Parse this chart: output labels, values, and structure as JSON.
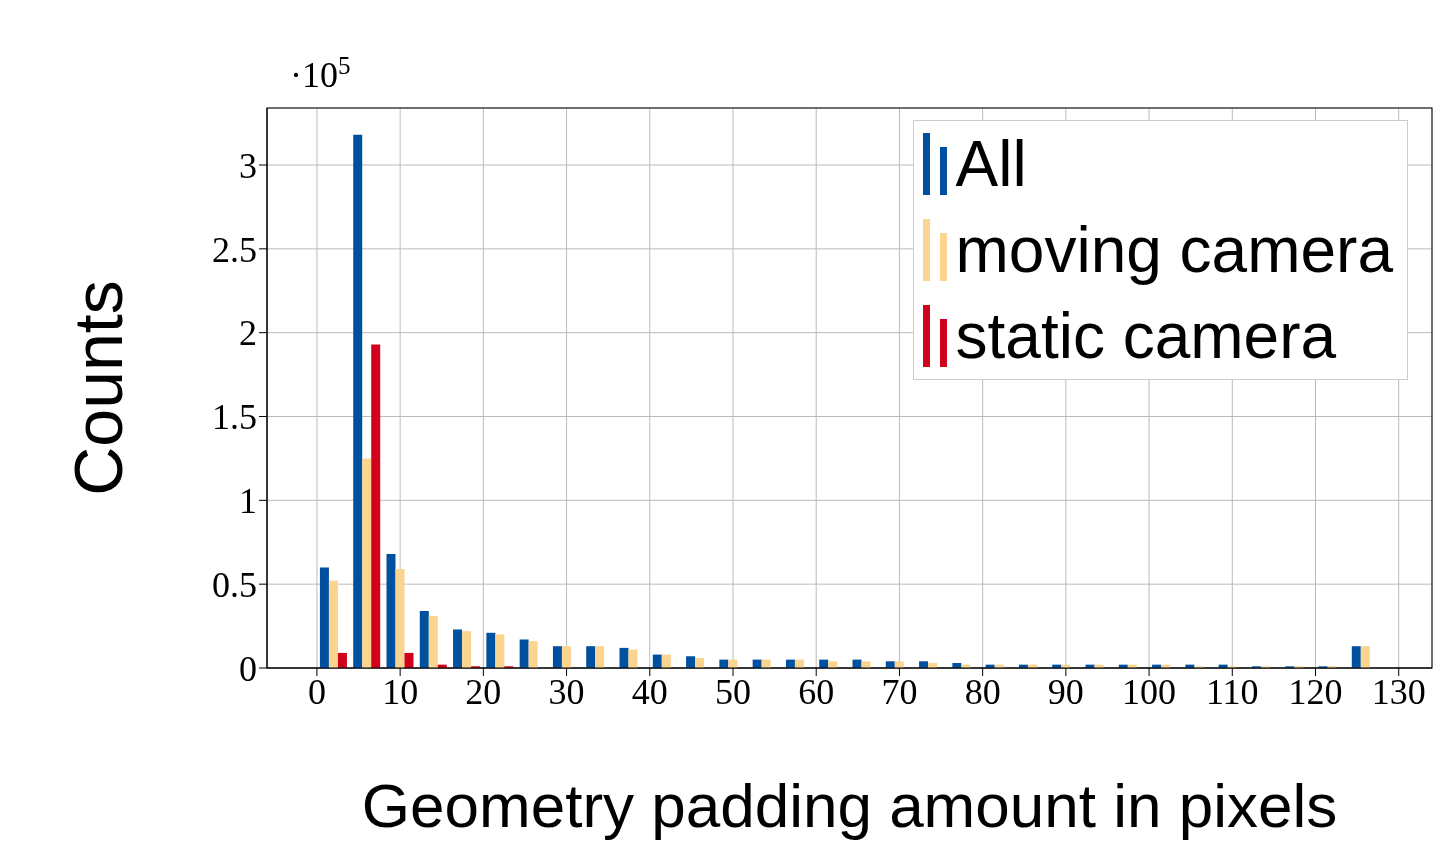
{
  "chart_data": {
    "type": "bar",
    "xlabel": "Geometry padding amount in pixels",
    "ylabel": "Counts",
    "annotations": [
      "·10$^{5}$"
    ],
    "x": [
      2,
      6,
      10,
      14,
      18,
      22,
      26,
      30,
      34,
      38,
      42,
      46,
      50,
      54,
      58,
      62,
      66,
      70,
      74,
      78,
      82,
      86,
      90,
      94,
      98,
      102,
      106,
      110,
      114,
      118,
      122,
      126
    ],
    "series": [
      {
        "name": "All",
        "color": "#0050a0",
        "values": [
          0.6,
          3.18,
          0.68,
          0.34,
          0.23,
          0.21,
          0.17,
          0.13,
          0.13,
          0.12,
          0.08,
          0.07,
          0.05,
          0.05,
          0.05,
          0.05,
          0.05,
          0.04,
          0.04,
          0.03,
          0.02,
          0.02,
          0.02,
          0.02,
          0.02,
          0.02,
          0.02,
          0.02,
          0.01,
          0.01,
          0.01,
          0.13
        ]
      },
      {
        "name": "moving camera",
        "color": "#fbd48f",
        "values": [
          0.52,
          1.25,
          0.59,
          0.31,
          0.22,
          0.2,
          0.16,
          0.13,
          0.13,
          0.11,
          0.08,
          0.06,
          0.05,
          0.05,
          0.05,
          0.04,
          0.04,
          0.04,
          0.03,
          0.02,
          0.02,
          0.02,
          0.02,
          0.02,
          0.02,
          0.02,
          0.01,
          0.01,
          0.01,
          0.01,
          0.01,
          0.13
        ]
      },
      {
        "name": "static camera",
        "color": "#d0021b",
        "values": [
          0.09,
          1.93,
          0.09,
          0.02,
          0.01,
          0.01,
          0,
          0,
          0,
          0,
          0,
          0,
          0,
          0,
          0,
          0,
          0,
          0,
          0,
          0,
          0,
          0,
          0,
          0,
          0,
          0,
          0,
          0,
          0,
          0,
          0,
          0
        ]
      }
    ],
    "xlim": [
      -6,
      134
    ],
    "xticks": [
      0,
      10,
      20,
      30,
      40,
      50,
      60,
      70,
      80,
      90,
      100,
      110,
      120,
      130
    ],
    "ylim": [
      0,
      3.34
    ],
    "yticks": [
      0,
      0.5,
      1,
      1.5,
      2,
      2.5,
      3
    ],
    "grid": true,
    "legend": "top right"
  }
}
